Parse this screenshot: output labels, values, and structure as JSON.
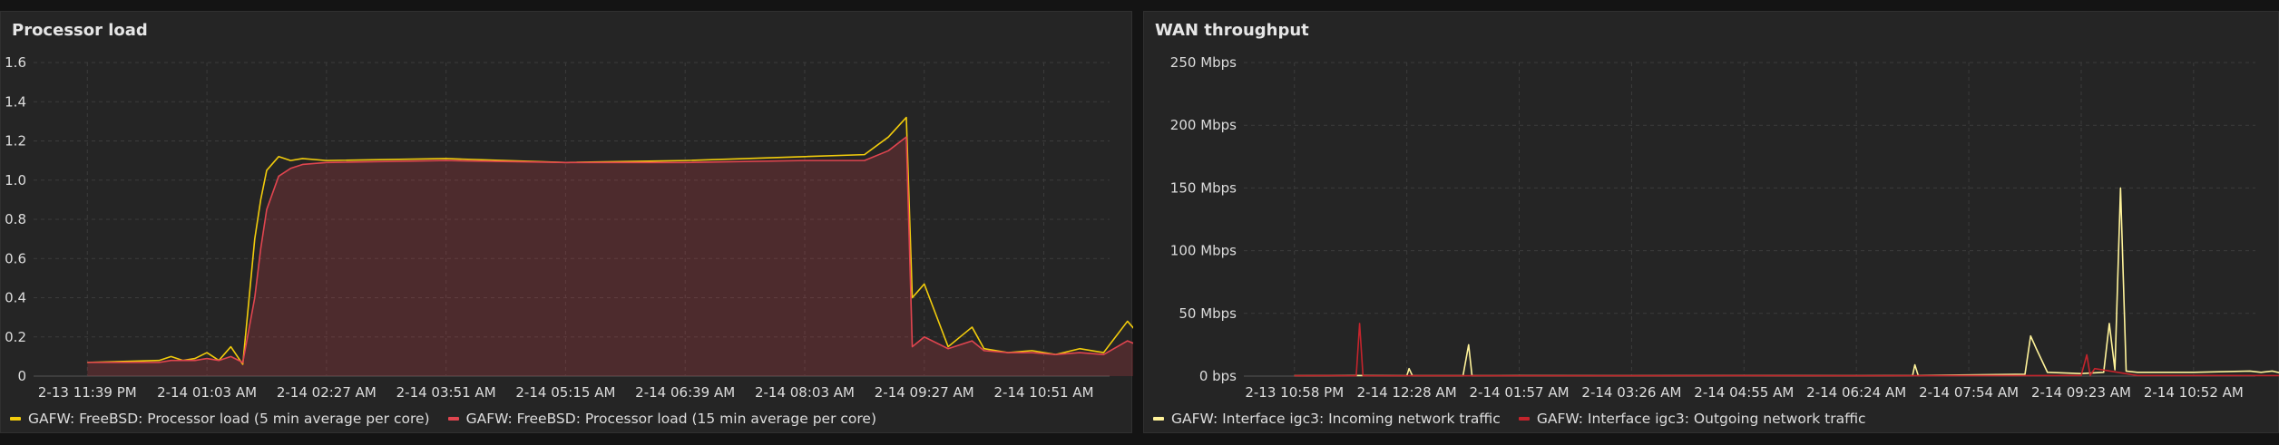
{
  "panels": {
    "cpu": {
      "title": "Processor load",
      "legend": [
        {
          "label": "GAFW: FreeBSD: Processor load (5 min average per core)",
          "color": "#f2cc0c"
        },
        {
          "label": "GAFW: FreeBSD: Processor load (15 min average per core)",
          "color": "#e0454f"
        }
      ]
    },
    "wan": {
      "title": "WAN throughput",
      "legend": [
        {
          "label": "GAFW: Interface igc3: Incoming network traffic",
          "color": "#fff39a"
        },
        {
          "label": "GAFW: Interface igc3: Outgoing network traffic",
          "color": "#c4242c"
        }
      ]
    }
  },
  "chart_data": [
    {
      "type": "line",
      "title": "Processor load",
      "ylim": [
        0,
        1.6
      ],
      "y_ticks": [
        "0",
        "0.2",
        "0.4",
        "0.6",
        "0.8",
        "1.0",
        "1.2",
        "1.4",
        "1.6"
      ],
      "x_ticks": [
        "2-13 11:39 PM",
        "2-14 01:03 AM",
        "2-14 02:27 AM",
        "2-14 03:51 AM",
        "2-14 05:15 AM",
        "2-14 06:39 AM",
        "2-14 08:03 AM",
        "2-14 09:27 AM",
        "2-14 10:51 AM"
      ],
      "series": [
        {
          "name": "GAFW: FreeBSD: Processor load (5 min average per core)",
          "color": "#f2cc0c",
          "x": [
            0,
            0.6,
            0.7,
            0.8,
            0.9,
            1.0,
            1.1,
            1.2,
            1.3,
            1.4,
            1.45,
            1.5,
            1.6,
            1.7,
            1.8,
            2.0,
            3.0,
            4.0,
            5.0,
            6.0,
            6.5,
            6.7,
            6.85,
            6.9,
            7.0,
            7.2,
            7.4,
            7.5,
            7.7,
            7.9,
            8.1,
            8.3,
            8.5,
            8.7,
            8.9,
            9.1,
            9.2,
            9.3
          ],
          "values": [
            0.07,
            0.08,
            0.1,
            0.08,
            0.09,
            0.12,
            0.08,
            0.15,
            0.06,
            0.7,
            0.9,
            1.05,
            1.12,
            1.1,
            1.11,
            1.1,
            1.11,
            1.09,
            1.1,
            1.12,
            1.13,
            1.22,
            1.32,
            0.4,
            0.47,
            0.15,
            0.25,
            0.14,
            0.12,
            0.13,
            0.11,
            0.14,
            0.12,
            0.28,
            0.14,
            0.12,
            0.1,
            0.09
          ]
        },
        {
          "name": "GAFW: FreeBSD: Processor load (15 min average per core)",
          "color": "#e0454f",
          "x": [
            0,
            0.6,
            0.7,
            0.8,
            0.9,
            1.0,
            1.1,
            1.2,
            1.3,
            1.4,
            1.45,
            1.5,
            1.6,
            1.7,
            1.8,
            2.0,
            3.0,
            4.0,
            5.0,
            6.0,
            6.5,
            6.7,
            6.85,
            6.9,
            7.0,
            7.2,
            7.4,
            7.5,
            7.7,
            7.9,
            8.1,
            8.3,
            8.5,
            8.7,
            8.9,
            9.1,
            9.2,
            9.3
          ],
          "values": [
            0.07,
            0.07,
            0.08,
            0.08,
            0.08,
            0.09,
            0.08,
            0.1,
            0.07,
            0.4,
            0.65,
            0.85,
            1.02,
            1.06,
            1.08,
            1.09,
            1.1,
            1.09,
            1.09,
            1.1,
            1.1,
            1.15,
            1.22,
            0.15,
            0.2,
            0.14,
            0.18,
            0.13,
            0.12,
            0.12,
            0.11,
            0.12,
            0.11,
            0.18,
            0.13,
            0.11,
            0.1,
            0.09
          ]
        }
      ]
    },
    {
      "type": "line",
      "title": "WAN throughput",
      "ylim": [
        0,
        250
      ],
      "y_ticks": [
        "0 bps",
        "50 Mbps",
        "100 Mbps",
        "150 Mbps",
        "200 Mbps",
        "250 Mbps"
      ],
      "x_ticks": [
        "2-13 10:58 PM",
        "2-14 12:28 AM",
        "2-14 01:57 AM",
        "2-14 03:26 AM",
        "2-14 04:55 AM",
        "2-14 06:24 AM",
        "2-14 07:54 AM",
        "2-14 09:23 AM",
        "2-14 10:52 AM"
      ],
      "series": [
        {
          "name": "GAFW: Interface igc3: Incoming network traffic",
          "color": "#fff39a",
          "x": [
            0,
            0.5,
            1.0,
            1.02,
            1.05,
            1.5,
            1.55,
            1.58,
            2.0,
            3.0,
            4.0,
            5.0,
            5.5,
            5.52,
            5.55,
            6.0,
            6.5,
            6.55,
            6.6,
            6.7,
            7.0,
            7.2,
            7.25,
            7.3,
            7.35,
            7.4,
            7.5,
            8.0,
            8.5,
            8.6,
            8.7,
            8.8,
            9.0
          ],
          "values": [
            0.3,
            0.5,
            0.3,
            6,
            0.3,
            0.3,
            25,
            0.3,
            0.4,
            0.3,
            0.5,
            0.3,
            0.5,
            9,
            0.5,
            1.0,
            1.5,
            32,
            22,
            3,
            2,
            3,
            42,
            5,
            150,
            4,
            3,
            3,
            4,
            3,
            4,
            2,
            3
          ]
        },
        {
          "name": "GAFW: Interface igc3: Outgoing network traffic",
          "color": "#c4242c",
          "x": [
            0,
            0.3,
            0.55,
            0.58,
            0.61,
            1.0,
            2.0,
            3.0,
            4.0,
            5.0,
            6.0,
            6.5,
            7.0,
            7.05,
            7.08,
            7.12,
            7.5,
            8.0,
            9.0
          ],
          "values": [
            0.3,
            0.4,
            0.3,
            42,
            0.3,
            0.3,
            0.3,
            0.3,
            0.4,
            0.3,
            0.4,
            0.4,
            0.5,
            17,
            0.5,
            6,
            0.5,
            0.5,
            0.4
          ]
        }
      ]
    }
  ]
}
